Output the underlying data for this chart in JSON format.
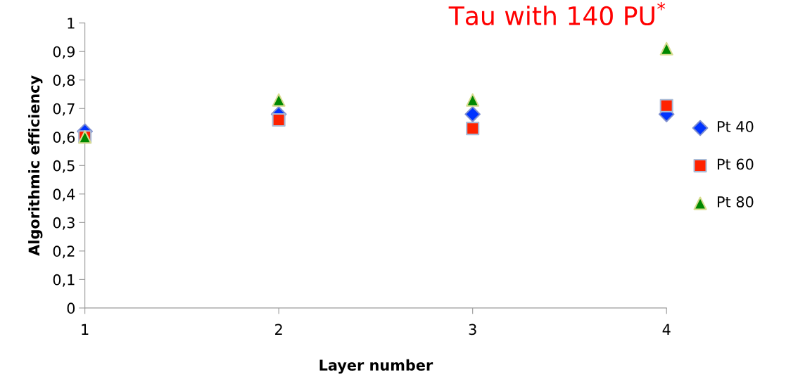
{
  "chart_data": {
    "type": "scatter",
    "title": "Tau with 140 PU$^{*}$",
    "xlabel": "Layer number",
    "ylabel": "Algorithmic efficiency",
    "x": [
      1,
      2,
      3,
      4
    ],
    "series": [
      {
        "name": "Pt 40",
        "color": "#0033ff",
        "marker": "diamond",
        "values": [
          0.62,
          0.68,
          0.68,
          0.68
        ]
      },
      {
        "name": "Pt 60",
        "color": "#ff2200",
        "marker": "square",
        "values": [
          0.6,
          0.66,
          0.63,
          0.71
        ]
      },
      {
        "name": "Pt 80",
        "color": "#008800",
        "marker": "triangle",
        "values": [
          0.6,
          0.73,
          0.73,
          0.91
        ]
      }
    ],
    "xlim": [
      1,
      4
    ],
    "xticks": [
      1,
      2,
      3,
      4
    ],
    "ylim": [
      0,
      1
    ],
    "yticks": [
      0,
      {
        "value": 0.1,
        "label": "0,1"
      },
      {
        "value": 0.2,
        "label": "0,2"
      },
      {
        "value": 0.3,
        "label": "0,3"
      },
      {
        "value": 0.4,
        "label": "0,4"
      },
      {
        "value": 0.5,
        "label": "0,5"
      },
      {
        "value": 0.6,
        "label": "0,6"
      },
      {
        "value": 0.7,
        "label": "0,7"
      },
      {
        "value": 0.8,
        "label": "0,8"
      },
      {
        "value": 0.9,
        "label": "0,9"
      },
      1
    ],
    "grid": false,
    "legend": "right"
  }
}
